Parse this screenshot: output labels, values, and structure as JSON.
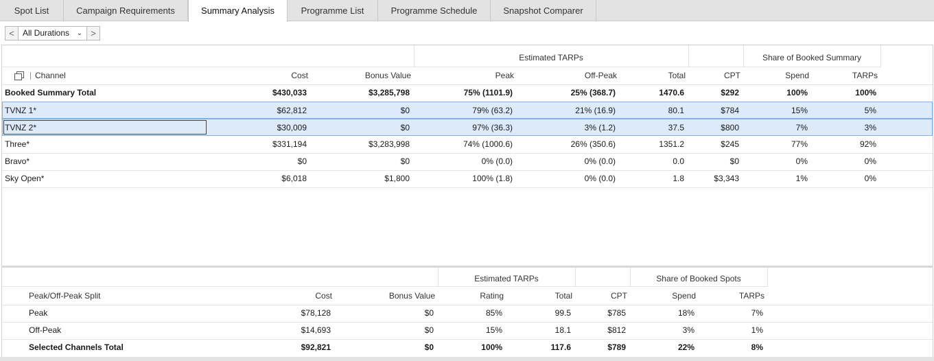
{
  "tabs": [
    {
      "label": "Spot List",
      "active": false
    },
    {
      "label": "Campaign Requirements",
      "active": false
    },
    {
      "label": "Summary Analysis",
      "active": true
    },
    {
      "label": "Programme List",
      "active": false
    },
    {
      "label": "Programme Schedule",
      "active": false
    },
    {
      "label": "Snapshot Comparer",
      "active": false
    }
  ],
  "duration": {
    "prev": "<",
    "next": ">",
    "selected": "All Durations"
  },
  "summary": {
    "group_headers": {
      "estimated_tarps": "Estimated TARPs",
      "share": "Share of Booked Summary"
    },
    "columns": [
      "Channel",
      "Cost",
      "Bonus Value",
      "Peak",
      "Off-Peak",
      "Total",
      "CPT",
      "Spend",
      "TARPs"
    ],
    "total_row": {
      "name": "Booked Summary Total",
      "cost": "$430,033",
      "bonus": "$3,285,798",
      "peak": "75% (1101.9)",
      "offpeak": "25% (368.7)",
      "total": "1470.6",
      "cpt": "$292",
      "spend": "100%",
      "tarps": "100%"
    },
    "rows": [
      {
        "name": "TVNZ 1*",
        "cost": "$62,812",
        "bonus": "$0",
        "peak": "79% (63.2)",
        "offpeak": "21% (16.9)",
        "total": "80.1",
        "cpt": "$784",
        "spend": "15%",
        "tarps": "5%"
      },
      {
        "name": "TVNZ 2*",
        "cost": "$30,009",
        "bonus": "$0",
        "peak": "97% (36.3)",
        "offpeak": "3% (1.2)",
        "total": "37.5",
        "cpt": "$800",
        "spend": "7%",
        "tarps": "3%"
      },
      {
        "name": "Three*",
        "cost": "$331,194",
        "bonus": "$3,283,998",
        "peak": "74% (1000.6)",
        "offpeak": "26% (350.6)",
        "total": "1351.2",
        "cpt": "$245",
        "spend": "77%",
        "tarps": "92%"
      },
      {
        "name": "Bravo*",
        "cost": "$0",
        "bonus": "$0",
        "peak": "0% (0.0)",
        "offpeak": "0% (0.0)",
        "total": "0.0",
        "cpt": "$0",
        "spend": "0%",
        "tarps": "0%"
      },
      {
        "name": "Sky Open*",
        "cost": "$6,018",
        "bonus": "$1,800",
        "peak": "100% (1.8)",
        "offpeak": "0% (0.0)",
        "total": "1.8",
        "cpt": "$3,343",
        "spend": "1%",
        "tarps": "0%"
      }
    ]
  },
  "split": {
    "group_headers": {
      "estimated_tarps": "Estimated TARPs",
      "share": "Share of Booked Spots"
    },
    "columns": [
      "Peak/Off-Peak Split",
      "Cost",
      "Bonus Value",
      "Rating",
      "Total",
      "CPT",
      "Spend",
      "TARPs"
    ],
    "rows": [
      {
        "name": "Peak",
        "cost": "$78,128",
        "bonus": "$0",
        "rating": "85%",
        "total": "99.5",
        "cpt": "$785",
        "spend": "18%",
        "tarps": "7%"
      },
      {
        "name": "Off-Peak",
        "cost": "$14,693",
        "bonus": "$0",
        "rating": "15%",
        "total": "18.1",
        "cpt": "$812",
        "spend": "3%",
        "tarps": "1%"
      }
    ],
    "total_row": {
      "name": "Selected Channels Total",
      "cost": "$92,821",
      "bonus": "$0",
      "rating": "100%",
      "total": "117.6",
      "cpt": "$789",
      "spend": "22%",
      "tarps": "8%"
    }
  }
}
